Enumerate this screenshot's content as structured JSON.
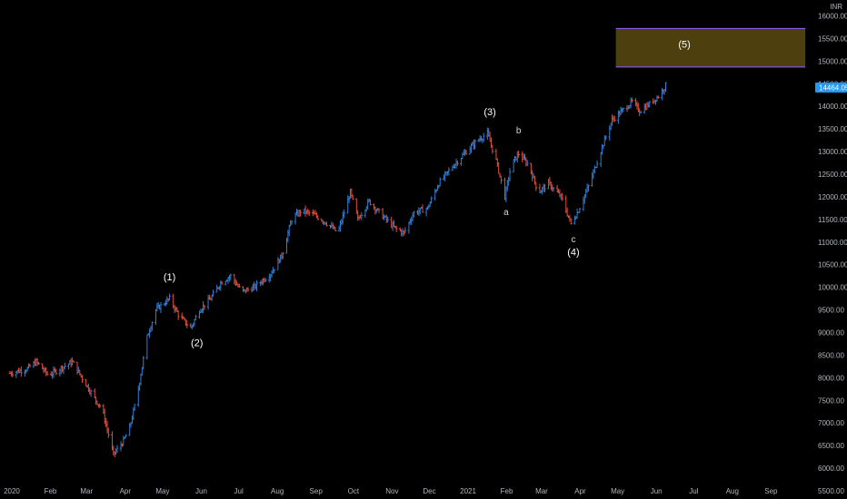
{
  "currency": "INR",
  "last_price_label": "14464.05",
  "colors": {
    "background": "#000000",
    "up": "#2f7fd6",
    "down": "#e0503c",
    "box_fill": "#5a4a10",
    "box_border": "#8a5cf0",
    "price_label_bg": "#2196f3",
    "text": "#b2b5be"
  },
  "chart_data": {
    "type": "bar",
    "symbol_currency": "INR",
    "ylim": [
      5500,
      16250
    ],
    "y_ticks": [
      "16000.00",
      "15500.00",
      "15000.00",
      "14500.00",
      "14000.00",
      "13500.00",
      "13000.00",
      "12500.00",
      "12000.00",
      "11500.00",
      "11000.00",
      "10500.00",
      "10000.00",
      "9500.00",
      "9000.00",
      "8500.00",
      "8000.00",
      "7500.00",
      "7000.00",
      "6500.00",
      "6000.00",
      "5500.00"
    ],
    "x_ticks": [
      "2020",
      "Feb",
      "Mar",
      "Apr",
      "May",
      "Jun",
      "Jul",
      "Aug",
      "Sep",
      "Oct",
      "Nov",
      "Dec",
      "2021",
      "Feb",
      "Mar",
      "Apr",
      "May",
      "Jun",
      "Jul",
      "Aug",
      "Sep"
    ],
    "grid": false,
    "price_path": [
      [
        "2020-01-01",
        8100
      ],
      [
        "2020-01-15",
        8200
      ],
      [
        "2020-01-22",
        8350
      ],
      [
        "2020-02-01",
        8050
      ],
      [
        "2020-02-10",
        8200
      ],
      [
        "2020-02-20",
        8350
      ],
      [
        "2020-03-01",
        7900
      ],
      [
        "2020-03-10",
        7500
      ],
      [
        "2020-03-15",
        7300
      ],
      [
        "2020-03-24",
        6300
      ],
      [
        "2020-04-01",
        6600
      ],
      [
        "2020-04-06",
        6900
      ],
      [
        "2020-04-12",
        7600
      ],
      [
        "2020-04-20",
        8900
      ],
      [
        "2020-04-27",
        9500
      ],
      [
        "2020-05-08",
        9750
      ],
      [
        "2020-05-16",
        9350
      ],
      [
        "2020-05-25",
        9100
      ],
      [
        "2020-06-01",
        9500
      ],
      [
        "2020-06-10",
        9750
      ],
      [
        "2020-06-18",
        10100
      ],
      [
        "2020-06-26",
        10250
      ],
      [
        "2020-07-05",
        9900
      ],
      [
        "2020-07-15",
        10000
      ],
      [
        "2020-07-28",
        10300
      ],
      [
        "2020-08-06",
        10700
      ],
      [
        "2020-08-14",
        11500
      ],
      [
        "2020-08-22",
        11700
      ],
      [
        "2020-09-01",
        11600
      ],
      [
        "2020-09-12",
        11400
      ],
      [
        "2020-09-20",
        11200
      ],
      [
        "2020-09-30",
        12100
      ],
      [
        "2020-10-06",
        11500
      ],
      [
        "2020-10-15",
        11900
      ],
      [
        "2020-10-25",
        11600
      ],
      [
        "2020-11-05",
        11300
      ],
      [
        "2020-11-12",
        11200
      ],
      [
        "2020-11-20",
        11650
      ],
      [
        "2020-12-01",
        11750
      ],
      [
        "2020-12-10",
        12300
      ],
      [
        "2020-12-22",
        12700
      ],
      [
        "2021-01-01",
        13000
      ],
      [
        "2021-01-10",
        13250
      ],
      [
        "2021-01-18",
        13400
      ],
      [
        "2021-01-25",
        12800
      ],
      [
        "2021-02-01",
        12000
      ],
      [
        "2021-02-06",
        12700
      ],
      [
        "2021-02-12",
        12950
      ],
      [
        "2021-02-20",
        12700
      ],
      [
        "2021-02-28",
        12100
      ],
      [
        "2021-03-08",
        12300
      ],
      [
        "2021-03-18",
        12000
      ],
      [
        "2021-03-26",
        11400
      ],
      [
        "2021-04-01",
        11700
      ],
      [
        "2021-04-10",
        12300
      ],
      [
        "2021-04-20",
        13100
      ],
      [
        "2021-04-28",
        13700
      ],
      [
        "2021-05-06",
        13900
      ],
      [
        "2021-05-14",
        14100
      ],
      [
        "2021-05-20",
        13900
      ],
      [
        "2021-05-28",
        14050
      ],
      [
        "2021-06-05",
        14250
      ],
      [
        "2021-06-10",
        14464
      ]
    ],
    "annotations": [
      {
        "text": "(1)",
        "date": "2020-05-08",
        "price": 10150
      },
      {
        "text": "(2)",
        "date": "2020-05-30",
        "price": 8700
      },
      {
        "text": "(3)",
        "date": "2021-01-20",
        "price": 13800
      },
      {
        "text": "a",
        "date": "2021-02-02",
        "price": 11600
      },
      {
        "text": "b",
        "date": "2021-02-12",
        "price": 13400
      },
      {
        "text": "c",
        "date": "2021-03-28",
        "price": 11000
      },
      {
        "text": "(4)",
        "date": "2021-03-28",
        "price": 10700
      },
      {
        "text": "(5)",
        "date": "2021-06-25",
        "price": 15300
      }
    ],
    "target_zone": {
      "label": "(5)",
      "start_date": "2021-05-01",
      "end_date": "2021-09-30",
      "price_low": 14870,
      "price_high": 15720
    },
    "last_price": 14464.05
  }
}
